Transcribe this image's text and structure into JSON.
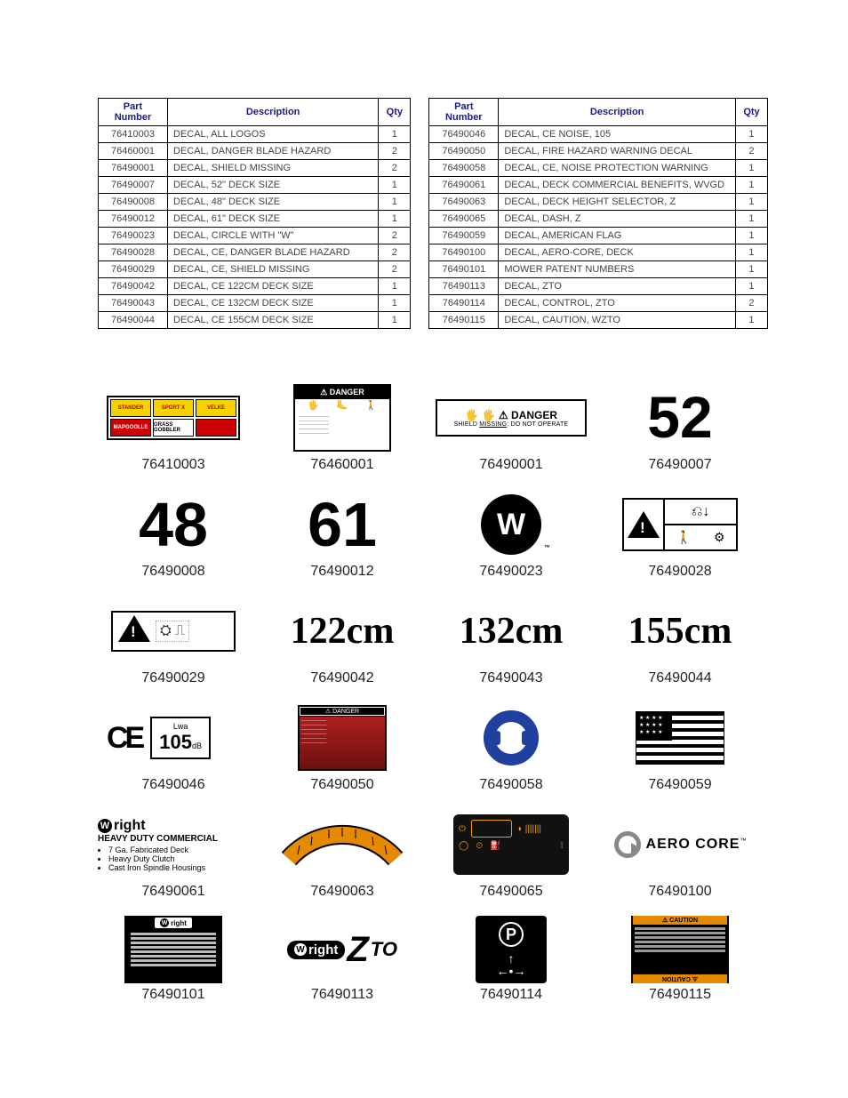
{
  "tables": {
    "headers": {
      "part": "Part Number",
      "desc": "Description",
      "qty": "Qty"
    },
    "left": [
      {
        "pn": "76410003",
        "desc": "DECAL, ALL LOGOS",
        "qty": "1"
      },
      {
        "pn": "76460001",
        "desc": "DECAL, DANGER BLADE HAZARD",
        "qty": "2"
      },
      {
        "pn": "76490001",
        "desc": "DECAL, SHIELD MISSING",
        "qty": "2"
      },
      {
        "pn": "76490007",
        "desc": "DECAL, 52\" DECK SIZE",
        "qty": "1"
      },
      {
        "pn": "76490008",
        "desc": "DECAL, 48\" DECK SIZE",
        "qty": "1"
      },
      {
        "pn": "76490012",
        "desc": "DECAL, 61\" DECK SIZE",
        "qty": "1"
      },
      {
        "pn": "76490023",
        "desc": "DECAL, CIRCLE WITH \"W\"",
        "qty": "2"
      },
      {
        "pn": "76490028",
        "desc": "DECAL, CE, DANGER BLADE HAZARD",
        "qty": "2"
      },
      {
        "pn": "76490029",
        "desc": "DECAL, CE, SHIELD MISSING",
        "qty": "2"
      },
      {
        "pn": "76490042",
        "desc": "DECAL, CE 122CM DECK SIZE",
        "qty": "1"
      },
      {
        "pn": "76490043",
        "desc": "DECAL, CE 132CM DECK SIZE",
        "qty": "1"
      },
      {
        "pn": "76490044",
        "desc": "DECAL, CE 155CM DECK SIZE",
        "qty": "1"
      }
    ],
    "right": [
      {
        "pn": "76490046",
        "desc": "DECAL, CE NOISE, 105",
        "qty": "1"
      },
      {
        "pn": "76490050",
        "desc": "DECAL, FIRE HAZARD WARNING DECAL",
        "qty": "2"
      },
      {
        "pn": "76490058",
        "desc": "DECAL, CE, NOISE PROTECTION WARNING",
        "qty": "1"
      },
      {
        "pn": "76490061",
        "desc": "DECAL, DECK COMMERCIAL BENEFITS, WVGD",
        "qty": "1"
      },
      {
        "pn": "76490063",
        "desc": "DECAL, DECK HEIGHT SELECTOR, Z",
        "qty": "1"
      },
      {
        "pn": "76490065",
        "desc": "DECAL, DASH, Z",
        "qty": "1"
      },
      {
        "pn": "76490059",
        "desc": "DECAL, AMERICAN FLAG",
        "qty": "1"
      },
      {
        "pn": "76490100",
        "desc": "DECAL, AERO-CORE, DECK",
        "qty": "1"
      },
      {
        "pn": "76490101",
        "desc": "MOWER PATENT NUMBERS",
        "qty": "1"
      },
      {
        "pn": "76490113",
        "desc": "DECAL, ZTO",
        "qty": "1"
      },
      {
        "pn": "76490114",
        "desc": "DECAL, CONTROL, ZTO",
        "qty": "2"
      },
      {
        "pn": "76490115",
        "desc": "DECAL, CAUTION, WZTO",
        "qty": "1"
      }
    ]
  },
  "decals": {
    "d76410003": {
      "label": "76410003",
      "boxes": [
        "STANDER",
        "SPORT X",
        "VELKE",
        "MAPGOOLLE",
        "GRASS GOBBLER",
        ""
      ]
    },
    "d76460001": {
      "label": "76460001",
      "hdr": "⚠ DANGER"
    },
    "d76490001": {
      "label": "76490001",
      "top": "⚠ DANGER",
      "sub": "SHIELD MISSING: DO NOT OPERATE"
    },
    "d76490007": {
      "label": "76490007",
      "num": "52"
    },
    "d76490008": {
      "label": "76490008",
      "num": "48"
    },
    "d76490012": {
      "label": "76490012",
      "num": "61"
    },
    "d76490023": {
      "label": "76490023",
      "letter": "W",
      "tm": "™"
    },
    "d76490028": {
      "label": "76490028"
    },
    "d76490029": {
      "label": "76490029"
    },
    "d76490042": {
      "label": "76490042",
      "txt": "122cm"
    },
    "d76490043": {
      "label": "76490043",
      "txt": "132cm"
    },
    "d76490044": {
      "label": "76490044",
      "txt": "155cm"
    },
    "d76490046": {
      "label": "76490046",
      "ce": "CE",
      "lwa": "Lwa",
      "db": "105",
      "unit": "dB"
    },
    "d76490050": {
      "label": "76490050",
      "hdr": "⚠ DANGER"
    },
    "d76490058": {
      "label": "76490058"
    },
    "d76490059": {
      "label": "76490059"
    },
    "d76490061": {
      "label": "76490061",
      "brand": "right",
      "hdc": "HEAVY DUTY COMMERCIAL",
      "b1": "7 Ga. Fabricated Deck",
      "b2": "Heavy Duty Clutch",
      "b3": "Cast Iron Spindle Housings"
    },
    "d76490063": {
      "label": "76490063"
    },
    "d76490065": {
      "label": "76490065"
    },
    "d76490100": {
      "label": "76490100",
      "txt": "AERO CORE",
      "tm": "™"
    },
    "d76490101": {
      "label": "76490101",
      "brand": "right"
    },
    "d76490113": {
      "label": "76490113",
      "brand": "right",
      "z": "Z",
      "to": "TO"
    },
    "d76490114": {
      "label": "76490114",
      "p": "P",
      "arrows_up": "↑",
      "arrows_lr": "←•→"
    },
    "d76490115": {
      "label": "76490115",
      "caution": "⚠ CAUTION"
    }
  },
  "colors": {
    "header_text": "#1a1a8a",
    "border": "#000000",
    "bg": "#ffffff",
    "yellow": "#f6d200",
    "red": "#c00000",
    "orange": "#e58a00",
    "blue": "#2040a0"
  }
}
